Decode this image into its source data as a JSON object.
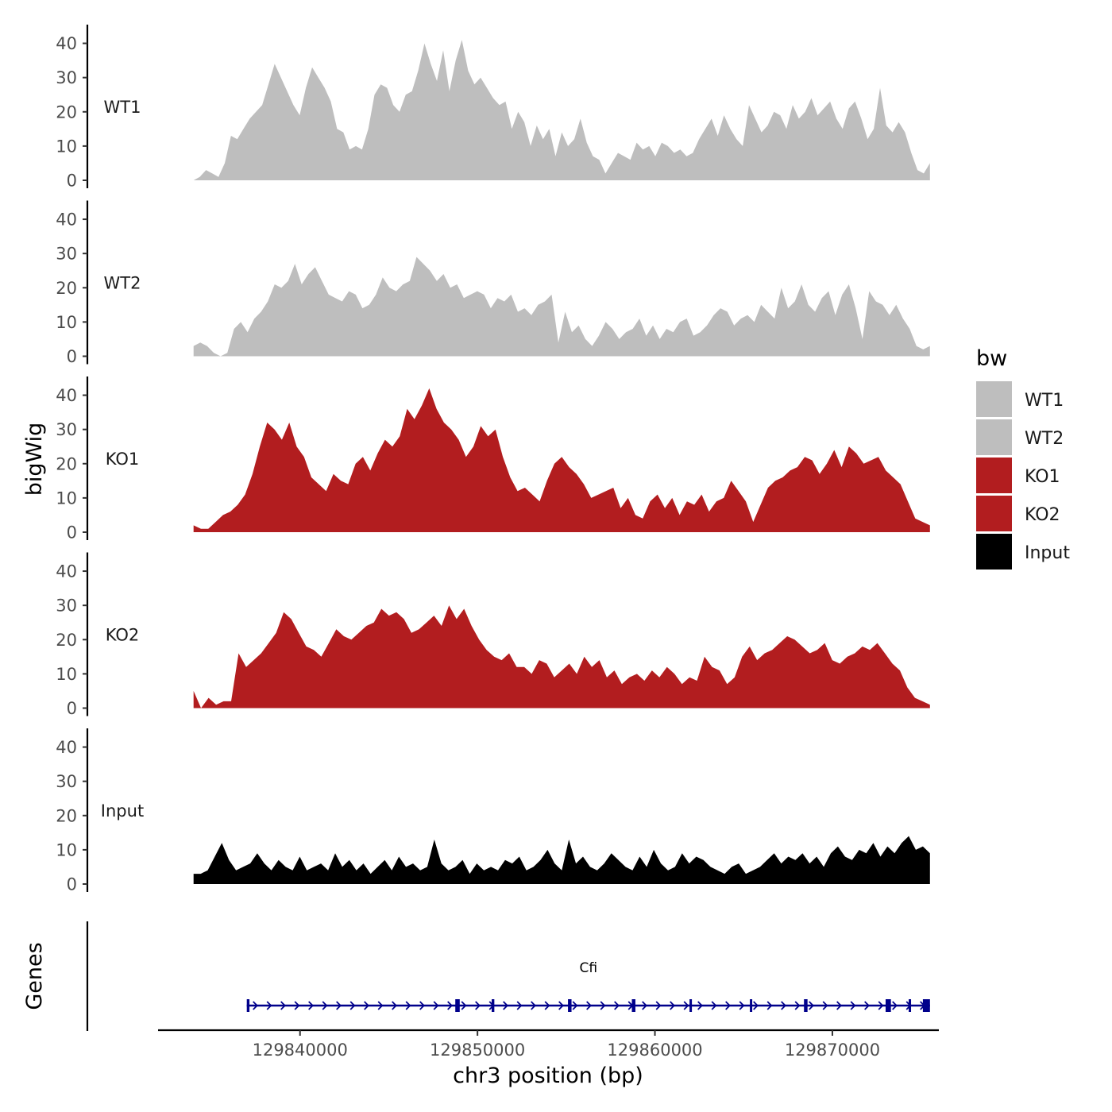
{
  "chart_data": {
    "type": "area",
    "xlabel": "chr3 position (bp)",
    "ylabel": "bigWig",
    "genes_label": "Genes",
    "xlim": [
      129832000,
      129876000
    ],
    "data_range": [
      129834000,
      129875500
    ],
    "x_ticks": [
      129840000,
      129850000,
      129860000,
      129870000
    ],
    "x_tick_labels": [
      "129840000",
      "129850000",
      "129860000",
      "129870000"
    ],
    "ylim": [
      0,
      45
    ],
    "y_ticks": [
      0,
      10,
      20,
      30,
      40
    ],
    "y_tick_labels": [
      "0",
      "10",
      "20",
      "30",
      "40"
    ],
    "series": [
      {
        "name": "WT1",
        "color": "#bebebe",
        "values": [
          0,
          1,
          3,
          2,
          1,
          5,
          13,
          12,
          15,
          18,
          20,
          22,
          28,
          34,
          30,
          26,
          22,
          19,
          27,
          33,
          30,
          27,
          23,
          15,
          14,
          9,
          10,
          9,
          15,
          25,
          28,
          27,
          22,
          20,
          25,
          26,
          32,
          40,
          34,
          29,
          38,
          26,
          35,
          41,
          32,
          28,
          30,
          27,
          24,
          22,
          23,
          15,
          20,
          17,
          10,
          16,
          12,
          15,
          7,
          14,
          10,
          12,
          18,
          11,
          7,
          6,
          2,
          5,
          8,
          7,
          6,
          11,
          9,
          10,
          7,
          11,
          10,
          8,
          9,
          7,
          8,
          12,
          15,
          18,
          13,
          19,
          15,
          12,
          10,
          22,
          18,
          14,
          16,
          20,
          19,
          15,
          22,
          18,
          20,
          24,
          19,
          21,
          23,
          18,
          15,
          21,
          23,
          18,
          12,
          15,
          27,
          16,
          14,
          17,
          14,
          8,
          3,
          2,
          5
        ]
      },
      {
        "name": "WT2",
        "color": "#bebebe",
        "values": [
          3,
          4,
          3,
          1,
          0,
          1,
          8,
          10,
          7,
          11,
          13,
          16,
          21,
          20,
          22,
          27,
          21,
          24,
          26,
          22,
          18,
          17,
          16,
          19,
          18,
          14,
          15,
          18,
          23,
          20,
          19,
          21,
          22,
          29,
          27,
          25,
          22,
          24,
          20,
          21,
          17,
          18,
          19,
          18,
          14,
          17,
          16,
          18,
          13,
          14,
          12,
          15,
          16,
          18,
          4,
          13,
          7,
          9,
          5,
          3,
          6,
          10,
          8,
          5,
          7,
          8,
          11,
          6,
          9,
          5,
          8,
          7,
          10,
          11,
          6,
          7,
          9,
          12,
          14,
          13,
          9,
          11,
          12,
          10,
          15,
          13,
          11,
          20,
          14,
          16,
          21,
          15,
          13,
          17,
          19,
          12,
          18,
          21,
          14,
          5,
          19,
          16,
          15,
          12,
          15,
          11,
          8,
          3,
          2,
          3
        ]
      },
      {
        "name": "KO1",
        "color": "#b21d1f",
        "values": [
          2,
          1,
          1,
          3,
          5,
          6,
          8,
          11,
          17,
          25,
          32,
          30,
          27,
          32,
          25,
          22,
          16,
          14,
          12,
          17,
          15,
          14,
          20,
          22,
          18,
          23,
          27,
          25,
          28,
          36,
          33,
          37,
          42,
          36,
          32,
          30,
          27,
          22,
          25,
          31,
          28,
          30,
          22,
          16,
          12,
          13,
          11,
          9,
          15,
          20,
          22,
          19,
          17,
          14,
          10,
          11,
          12,
          13,
          7,
          10,
          5,
          4,
          9,
          11,
          7,
          10,
          5,
          9,
          8,
          11,
          6,
          9,
          10,
          15,
          12,
          9,
          3,
          8,
          13,
          15,
          16,
          18,
          19,
          22,
          21,
          17,
          20,
          24,
          19,
          25,
          23,
          20,
          21,
          22,
          18,
          16,
          14,
          9,
          4,
          3,
          2
        ]
      },
      {
        "name": "KO2",
        "color": "#b21d1f",
        "values": [
          5,
          0,
          3,
          1,
          2,
          2,
          16,
          12,
          14,
          16,
          19,
          22,
          28,
          26,
          22,
          18,
          17,
          15,
          19,
          23,
          21,
          20,
          22,
          24,
          25,
          29,
          27,
          28,
          26,
          22,
          23,
          25,
          27,
          24,
          30,
          26,
          29,
          24,
          20,
          17,
          15,
          14,
          16,
          12,
          12,
          10,
          14,
          13,
          9,
          11,
          13,
          10,
          15,
          12,
          14,
          9,
          11,
          7,
          9,
          10,
          8,
          11,
          9,
          12,
          10,
          7,
          9,
          8,
          15,
          12,
          11,
          7,
          9,
          15,
          18,
          14,
          16,
          17,
          19,
          21,
          20,
          18,
          16,
          17,
          19,
          14,
          13,
          15,
          16,
          18,
          17,
          19,
          16,
          13,
          11,
          6,
          3,
          2,
          1
        ]
      },
      {
        "name": "Input",
        "color": "#000000",
        "values": [
          3,
          3,
          4,
          8,
          12,
          7,
          4,
          5,
          6,
          9,
          6,
          4,
          7,
          5,
          4,
          8,
          4,
          5,
          6,
          4,
          9,
          5,
          7,
          4,
          6,
          3,
          5,
          7,
          4,
          8,
          5,
          6,
          4,
          5,
          13,
          6,
          4,
          5,
          7,
          3,
          6,
          4,
          5,
          4,
          7,
          6,
          8,
          4,
          5,
          7,
          10,
          6,
          4,
          13,
          6,
          8,
          5,
          4,
          6,
          9,
          7,
          5,
          4,
          8,
          5,
          10,
          6,
          4,
          5,
          9,
          6,
          8,
          7,
          5,
          4,
          3,
          5,
          6,
          3,
          4,
          5,
          7,
          9,
          6,
          8,
          7,
          9,
          6,
          8,
          5,
          9,
          11,
          8,
          7,
          10,
          9,
          12,
          8,
          11,
          9,
          12,
          14,
          10,
          11,
          9
        ]
      }
    ],
    "legend": {
      "title": "bw",
      "position": "right",
      "entries": [
        {
          "label": "WT1",
          "color": "#bebebe"
        },
        {
          "label": "WT2",
          "color": "#bebebe"
        },
        {
          "label": "KO1",
          "color": "#b21d1f"
        },
        {
          "label": "KO2",
          "color": "#b21d1f"
        },
        {
          "label": "Input",
          "color": "#000000"
        }
      ]
    },
    "gene": {
      "name": "Cfi",
      "color": "#00008b",
      "strand": "+",
      "start": 129837000,
      "end": 129875500,
      "exons": [
        [
          129837000,
          129837150
        ],
        [
          129848750,
          129849000
        ],
        [
          129850800,
          129850950
        ],
        [
          129855100,
          129855300
        ],
        [
          129858700,
          129858900
        ],
        [
          129861950,
          129862050
        ],
        [
          129865350,
          129865450
        ],
        [
          129868400,
          129868600
        ],
        [
          129873000,
          129873300
        ],
        [
          129874300,
          129874400
        ],
        [
          129875100,
          129875500
        ]
      ]
    }
  }
}
